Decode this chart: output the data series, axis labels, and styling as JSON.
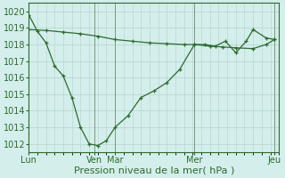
{
  "xlabel": "Pression niveau de la mer( hPa )",
  "bg_color": "#d4eeec",
  "grid_color": "#b8d8d4",
  "line_color": "#2d6a2d",
  "ylim": [
    1011.5,
    1020.5
  ],
  "yticks": [
    1012,
    1013,
    1014,
    1015,
    1016,
    1017,
    1018,
    1019,
    1020
  ],
  "day_positions": [
    0,
    76,
    100,
    192,
    285
  ],
  "day_labels": [
    "Lun",
    "Ven",
    "Mar",
    "Mer",
    "Jeu"
  ],
  "series1_x": [
    0,
    10,
    20,
    30,
    40,
    50,
    60,
    70,
    80,
    90,
    100,
    115,
    130,
    145,
    160,
    175,
    192,
    204,
    216,
    228,
    240,
    252,
    260,
    275,
    285
  ],
  "series1_y": [
    1019.8,
    1018.8,
    1018.1,
    1016.7,
    1016.1,
    1014.8,
    1013.0,
    1012.0,
    1011.9,
    1012.2,
    1013.0,
    1013.7,
    1014.8,
    1015.2,
    1015.7,
    1016.5,
    1018.0,
    1018.0,
    1017.9,
    1018.2,
    1017.5,
    1018.2,
    1018.9,
    1018.4,
    1018.3
  ],
  "series2_x": [
    0,
    20,
    40,
    60,
    80,
    100,
    120,
    140,
    160,
    180,
    192,
    210,
    225,
    240,
    260,
    275,
    285
  ],
  "series2_y": [
    1018.9,
    1018.85,
    1018.75,
    1018.65,
    1018.5,
    1018.3,
    1018.2,
    1018.1,
    1018.05,
    1018.0,
    1018.0,
    1017.9,
    1017.85,
    1017.8,
    1017.75,
    1018.0,
    1018.3
  ],
  "xlim": [
    0,
    290
  ],
  "tick_fontsize": 7,
  "label_fontsize": 8,
  "figsize": [
    3.2,
    2.0
  ],
  "dpi": 100
}
